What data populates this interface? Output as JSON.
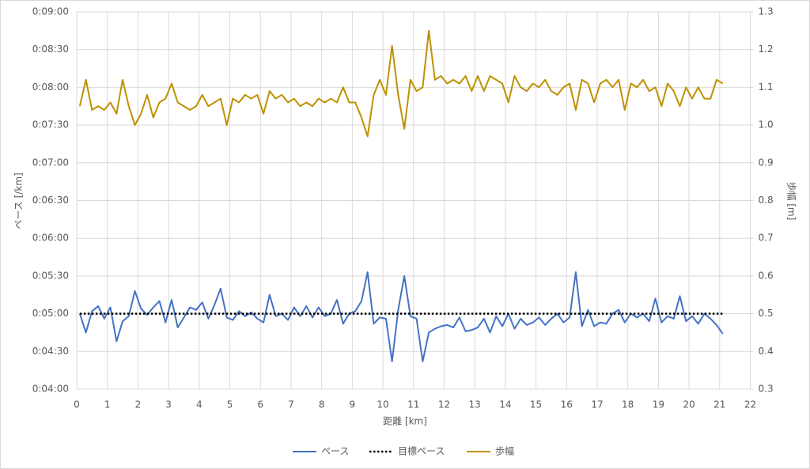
{
  "chart_data": {
    "type": "line",
    "xlabel": "距離 [km]",
    "ylabel": "ペース [/km]",
    "y2label": "歩幅 [m]",
    "xlim": [
      0,
      22
    ],
    "xticks": [
      0,
      1,
      2,
      3,
      4,
      5,
      6,
      7,
      8,
      9,
      10,
      11,
      12,
      13,
      14,
      15,
      16,
      17,
      18,
      19,
      20,
      21,
      22
    ],
    "ylim": [
      240,
      540
    ],
    "yticks": [
      {
        "value": 240,
        "label": "0:04:00"
      },
      {
        "value": 270,
        "label": "0:04:30"
      },
      {
        "value": 300,
        "label": "0:05:00"
      },
      {
        "value": 330,
        "label": "0:05:30"
      },
      {
        "value": 360,
        "label": "0:06:00"
      },
      {
        "value": 390,
        "label": "0:06:30"
      },
      {
        "value": 420,
        "label": "0:07:00"
      },
      {
        "value": 450,
        "label": "0:07:30"
      },
      {
        "value": 480,
        "label": "0:08:00"
      },
      {
        "value": 510,
        "label": "0:08:30"
      },
      {
        "value": 540,
        "label": "0:09:00"
      }
    ],
    "y2lim": [
      0.3,
      1.3
    ],
    "y2ticks": [
      0.3,
      0.4,
      0.5,
      0.6,
      0.7,
      0.8,
      0.9,
      {
        "value": 1,
        "label": "1.0"
      },
      1.1,
      1.2,
      1.3
    ],
    "grid": true,
    "legend": "bottom",
    "x": [
      0.1,
      0.3,
      0.5,
      0.7,
      0.9,
      1.1,
      1.3,
      1.5,
      1.7,
      1.9,
      2.1,
      2.3,
      2.5,
      2.7,
      2.9,
      3.1,
      3.3,
      3.5,
      3.7,
      3.9,
      4.1,
      4.3,
      4.5,
      4.7,
      4.9,
      5.1,
      5.3,
      5.5,
      5.7,
      5.9,
      6.1,
      6.3,
      6.5,
      6.7,
      6.9,
      7.1,
      7.3,
      7.5,
      7.7,
      7.9,
      8.1,
      8.3,
      8.5,
      8.7,
      8.9,
      9.1,
      9.3,
      9.5,
      9.7,
      9.9,
      10.1,
      10.3,
      10.5,
      10.7,
      10.9,
      11.1,
      11.3,
      11.5,
      11.7,
      11.9,
      12.1,
      12.3,
      12.5,
      12.7,
      12.9,
      13.1,
      13.3,
      13.5,
      13.7,
      13.9,
      14.1,
      14.3,
      14.5,
      14.7,
      14.9,
      15.1,
      15.3,
      15.5,
      15.7,
      15.9,
      16.1,
      16.3,
      16.5,
      16.7,
      16.9,
      17.1,
      17.3,
      17.5,
      17.7,
      17.9,
      18.1,
      18.3,
      18.5,
      18.7,
      18.9,
      19.1,
      19.3,
      19.5,
      19.7,
      19.9,
      20.1,
      20.3,
      20.5,
      20.7,
      20.9,
      21.1
    ],
    "series": [
      {
        "name": "ペース",
        "color": "#4472c4",
        "style": "solid",
        "values": [
          300,
          285,
          302,
          306,
          296,
          305,
          278,
          294,
          298,
          318,
          304,
          299,
          305,
          310,
          293,
          311,
          289,
          297,
          305,
          303,
          309,
          296,
          307,
          320,
          297,
          295,
          302,
          298,
          301,
          296,
          293,
          315,
          298,
          300,
          295,
          305,
          298,
          306,
          297,
          305,
          298,
          300,
          311,
          292,
          300,
          302,
          310,
          333,
          292,
          297,
          296,
          262,
          303,
          330,
          298,
          296,
          262,
          285,
          288,
          290,
          291,
          289,
          297,
          286,
          287,
          289,
          296,
          285,
          298,
          290,
          300,
          288,
          296,
          291,
          293,
          297,
          291,
          296,
          300,
          293,
          297,
          333,
          290,
          303,
          290,
          293,
          292,
          300,
          303,
          293,
          300,
          297,
          300,
          294,
          312,
          293,
          298,
          296,
          314,
          294,
          298,
          292,
          300,
          296,
          291,
          284
        ]
      },
      {
        "name": "目標ペース",
        "color": "#000000",
        "style": "dotted",
        "x": [
          0.1,
          21.1
        ],
        "values": [
          300,
          300
        ]
      },
      {
        "name": "歩幅",
        "color": "#bf9000",
        "style": "solid",
        "axis": "y2",
        "values": [
          1.05,
          1.12,
          1.04,
          1.05,
          1.04,
          1.06,
          1.03,
          1.12,
          1.05,
          1.0,
          1.03,
          1.08,
          1.02,
          1.06,
          1.07,
          1.11,
          1.06,
          1.05,
          1.04,
          1.05,
          1.08,
          1.05,
          1.06,
          1.07,
          1.0,
          1.07,
          1.06,
          1.08,
          1.07,
          1.08,
          1.03,
          1.09,
          1.07,
          1.08,
          1.06,
          1.07,
          1.05,
          1.06,
          1.05,
          1.07,
          1.06,
          1.07,
          1.06,
          1.1,
          1.06,
          1.06,
          1.02,
          0.97,
          1.08,
          1.12,
          1.08,
          1.21,
          1.08,
          0.99,
          1.12,
          1.09,
          1.1,
          1.25,
          1.12,
          1.13,
          1.11,
          1.12,
          1.11,
          1.13,
          1.09,
          1.13,
          1.09,
          1.13,
          1.12,
          1.11,
          1.06,
          1.13,
          1.1,
          1.09,
          1.11,
          1.1,
          1.12,
          1.09,
          1.08,
          1.1,
          1.11,
          1.04,
          1.12,
          1.11,
          1.06,
          1.11,
          1.12,
          1.1,
          1.12,
          1.04,
          1.11,
          1.1,
          1.12,
          1.09,
          1.1,
          1.05,
          1.11,
          1.09,
          1.05,
          1.1,
          1.07,
          1.1,
          1.07,
          1.07,
          1.12,
          1.11
        ]
      }
    ]
  }
}
